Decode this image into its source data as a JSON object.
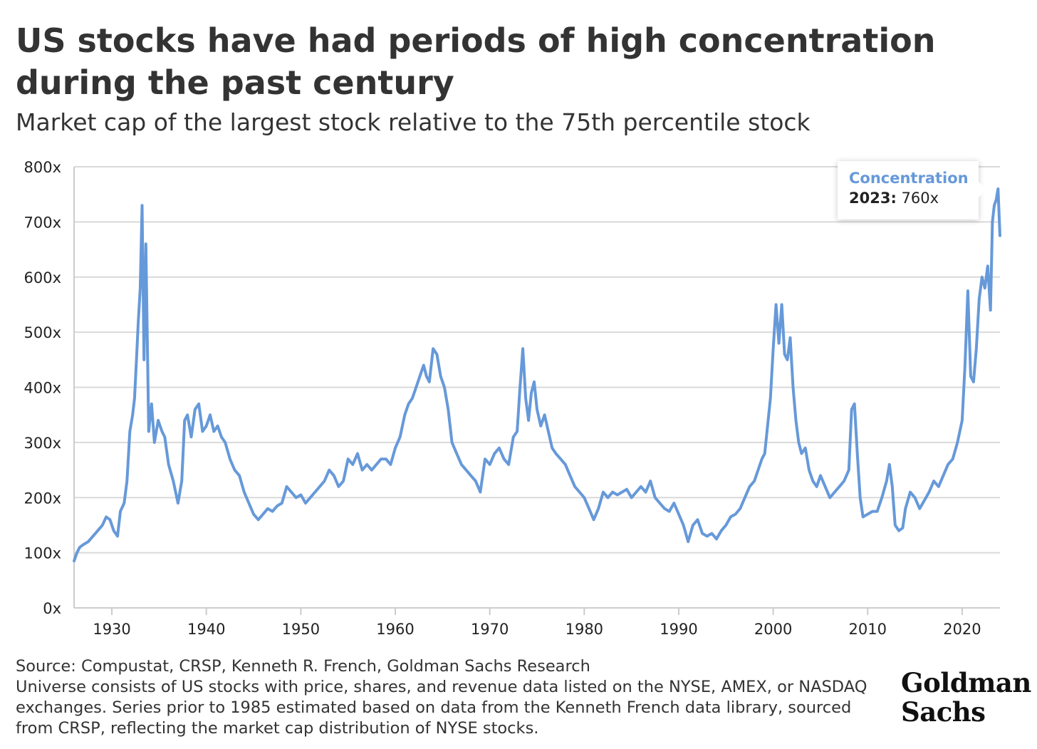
{
  "title": "US stocks have had periods of high concentration during the past century",
  "subtitle": "Market cap of the largest stock relative to the 75th percentile stock",
  "source": "Source: Compustat, CRSP, Kenneth R. French, Goldman Sachs Research",
  "note": "Universe consists of US stocks with price, shares, and revenue data listed on the NYSE, AMEX, or NASDAQ exchanges. Series prior to 1985 estimated based on data from the Kenneth French data library, sourced from CRSP, reflecting the market cap distribution of NYSE stocks.",
  "logo": "Goldman Sachs",
  "tooltip": {
    "series": "Concentration",
    "year": "2023:",
    "value": "760x"
  },
  "colors": {
    "line": "#6699d9",
    "grid": "#d9d9d9",
    "axis": "#cccccc"
  },
  "chart_data": {
    "type": "line",
    "title": "US stocks have had periods of high concentration during the past century",
    "subtitle": "Market cap of the largest stock relative to the 75th percentile stock",
    "xlim": [
      1926,
      2024
    ],
    "ylim": [
      0,
      800
    ],
    "y_ticks": [
      0,
      100,
      200,
      300,
      400,
      500,
      600,
      700,
      800
    ],
    "y_tick_labels": [
      "0x",
      "100x",
      "200x",
      "300x",
      "400x",
      "500x",
      "600x",
      "700x",
      "800x"
    ],
    "x_ticks": [
      1930,
      1940,
      1950,
      1960,
      1970,
      1980,
      1990,
      2000,
      2010,
      2020
    ],
    "x_tick_labels": [
      "1930",
      "1940",
      "1950",
      "1960",
      "1970",
      "1980",
      "1990",
      "2000",
      "2010",
      "2020"
    ],
    "grid": "horizontal",
    "series": [
      {
        "name": "Concentration",
        "x": [
          1926.0,
          1926.3,
          1926.6,
          1927.0,
          1927.5,
          1928.0,
          1928.5,
          1929.0,
          1929.4,
          1929.8,
          1930.2,
          1930.6,
          1930.9,
          1931.3,
          1931.6,
          1931.9,
          1932.2,
          1932.4,
          1932.6,
          1932.8,
          1933.0,
          1933.2,
          1933.4,
          1933.6,
          1933.9,
          1934.2,
          1934.5,
          1934.9,
          1935.3,
          1935.6,
          1936.0,
          1936.5,
          1937.0,
          1937.4,
          1937.7,
          1938.0,
          1938.4,
          1938.8,
          1939.2,
          1939.6,
          1940.0,
          1940.4,
          1940.8,
          1941.2,
          1941.6,
          1942.0,
          1942.5,
          1943.0,
          1943.5,
          1944.0,
          1944.5,
          1945.0,
          1945.5,
          1946.0,
          1946.5,
          1947.0,
          1947.5,
          1948.0,
          1948.5,
          1949.0,
          1949.5,
          1950.0,
          1950.5,
          1951.0,
          1951.5,
          1952.0,
          1952.5,
          1953.0,
          1953.5,
          1954.0,
          1954.5,
          1955.0,
          1955.5,
          1956.0,
          1956.5,
          1957.0,
          1957.5,
          1958.0,
          1958.5,
          1959.0,
          1959.5,
          1960.0,
          1960.5,
          1961.0,
          1961.4,
          1961.8,
          1962.2,
          1962.6,
          1963.0,
          1963.3,
          1963.6,
          1964.0,
          1964.4,
          1964.8,
          1965.2,
          1965.6,
          1966.0,
          1966.5,
          1967.0,
          1967.5,
          1968.0,
          1968.5,
          1969.0,
          1969.5,
          1970.0,
          1970.5,
          1971.0,
          1971.5,
          1972.0,
          1972.5,
          1972.9,
          1973.2,
          1973.5,
          1973.8,
          1974.1,
          1974.4,
          1974.7,
          1975.0,
          1975.4,
          1975.8,
          1976.2,
          1976.6,
          1977.0,
          1977.5,
          1978.0,
          1978.5,
          1979.0,
          1979.5,
          1980.0,
          1980.5,
          1981.0,
          1981.5,
          1982.0,
          1982.5,
          1983.0,
          1983.5,
          1984.0,
          1984.5,
          1985.0,
          1985.5,
          1986.0,
          1986.5,
          1987.0,
          1987.5,
          1988.0,
          1988.5,
          1989.0,
          1989.5,
          1990.0,
          1990.5,
          1991.0,
          1991.5,
          1992.0,
          1992.5,
          1993.0,
          1993.5,
          1994.0,
          1994.5,
          1995.0,
          1995.5,
          1996.0,
          1996.5,
          1997.0,
          1997.5,
          1998.0,
          1998.4,
          1998.8,
          1999.1,
          1999.4,
          1999.7,
          2000.0,
          2000.3,
          2000.6,
          2000.9,
          2001.2,
          2001.5,
          2001.8,
          2002.1,
          2002.4,
          2002.7,
          2003.0,
          2003.4,
          2003.8,
          2004.2,
          2004.6,
          2005.0,
          2005.5,
          2006.0,
          2006.5,
          2007.0,
          2007.5,
          2008.0,
          2008.3,
          2008.6,
          2008.9,
          2009.2,
          2009.5,
          2010.0,
          2010.5,
          2011.0,
          2011.5,
          2012.0,
          2012.3,
          2012.6,
          2012.9,
          2013.3,
          2013.7,
          2014.0,
          2014.5,
          2015.0,
          2015.5,
          2016.0,
          2016.5,
          2017.0,
          2017.5,
          2018.0,
          2018.5,
          2019.0,
          2019.5,
          2020.0,
          2020.3,
          2020.6,
          2020.9,
          2021.2,
          2021.5,
          2021.8,
          2022.1,
          2022.4,
          2022.7,
          2023.0,
          2023.2,
          2023.4,
          2023.6,
          2023.8,
          2024.0
        ],
        "values": [
          85,
          100,
          110,
          115,
          120,
          130,
          140,
          150,
          165,
          160,
          140,
          130,
          175,
          190,
          230,
          320,
          350,
          380,
          450,
          520,
          580,
          730,
          450,
          660,
          320,
          370,
          300,
          340,
          320,
          310,
          260,
          230,
          190,
          230,
          340,
          350,
          310,
          360,
          370,
          320,
          330,
          350,
          320,
          330,
          310,
          300,
          270,
          250,
          240,
          210,
          190,
          170,
          160,
          170,
          180,
          175,
          185,
          190,
          220,
          210,
          200,
          205,
          190,
          200,
          210,
          220,
          230,
          250,
          240,
          220,
          230,
          270,
          260,
          280,
          250,
          260,
          250,
          260,
          270,
          270,
          260,
          290,
          310,
          350,
          370,
          380,
          400,
          420,
          440,
          420,
          410,
          470,
          460,
          420,
          400,
          360,
          300,
          280,
          260,
          250,
          240,
          230,
          210,
          270,
          260,
          280,
          290,
          270,
          260,
          310,
          320,
          400,
          470,
          380,
          340,
          390,
          410,
          360,
          330,
          350,
          320,
          290,
          280,
          270,
          260,
          240,
          220,
          210,
          200,
          180,
          160,
          180,
          210,
          200,
          210,
          205,
          210,
          215,
          200,
          210,
          220,
          210,
          230,
          200,
          190,
          180,
          175,
          190,
          170,
          150,
          120,
          150,
          160,
          135,
          130,
          135,
          125,
          140,
          150,
          165,
          170,
          180,
          200,
          220,
          230,
          250,
          270,
          280,
          330,
          380,
          470,
          550,
          480,
          550,
          460,
          450,
          490,
          400,
          340,
          300,
          280,
          290,
          250,
          230,
          220,
          240,
          220,
          200,
          210,
          220,
          230,
          250,
          360,
          370,
          280,
          200,
          165,
          170,
          175,
          175,
          200,
          230,
          260,
          220,
          150,
          140,
          145,
          180,
          210,
          200,
          180,
          195,
          210,
          230,
          220,
          240,
          260,
          270,
          300,
          340,
          440,
          575,
          420,
          410,
          470,
          560,
          600,
          580,
          620,
          540,
          700,
          730,
          740,
          760,
          675
        ]
      }
    ]
  }
}
